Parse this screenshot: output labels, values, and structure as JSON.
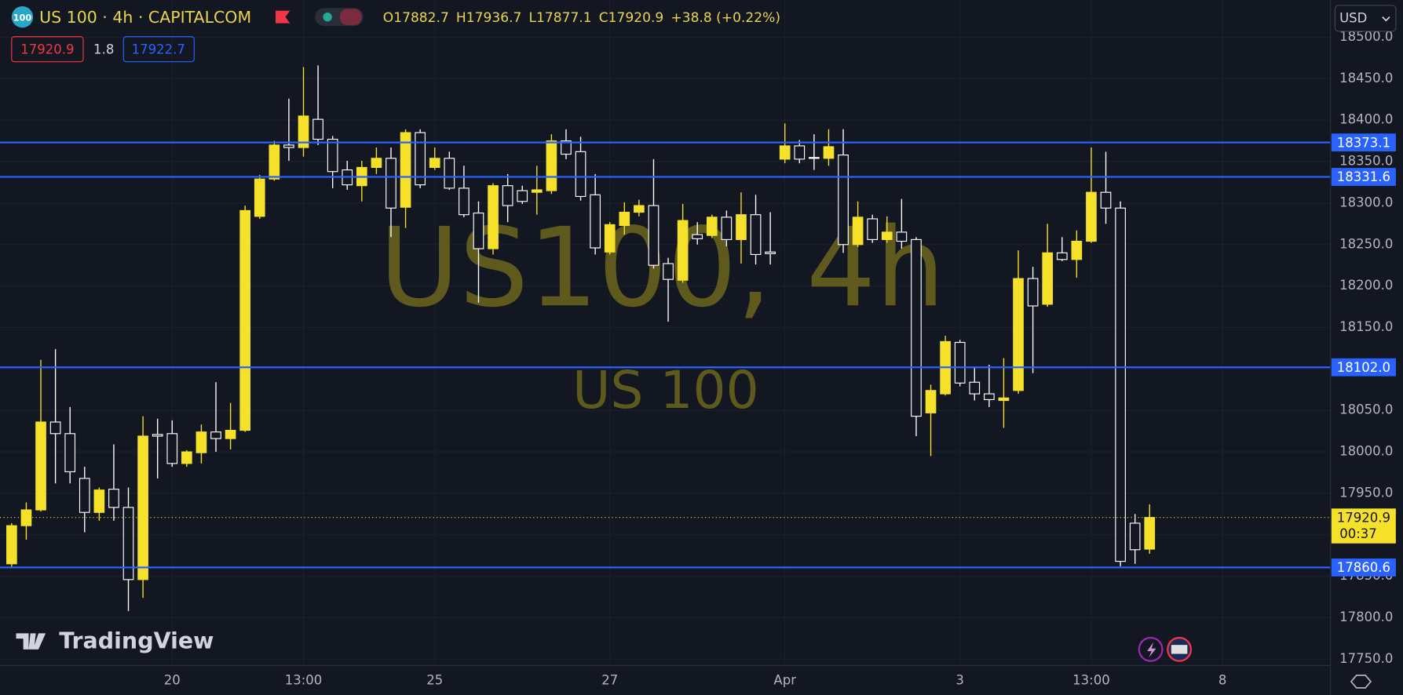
{
  "header": {
    "badge": "100",
    "symbol": "US 100 · 4h · CAPITALCOM",
    "ohlc_letters": [
      "O",
      "H",
      "L",
      "C"
    ],
    "change": "+38.8 (+0.22%)",
    "bid": 17920.9,
    "spread": 1.8,
    "ask": 17922.7,
    "currency": "USD"
  },
  "watermark": {
    "title": "US100, 4h",
    "subtitle": "US 100"
  },
  "logo": "TradingView",
  "chart_data": {
    "type": "candlestick",
    "up_color": "#f5e12a",
    "down_color": "#ffffff",
    "level_color": "#2962ff",
    "grid": true,
    "xlim": [
      -0.8,
      90.4
    ],
    "xticks": [
      {
        "value": 11,
        "label": "20"
      },
      {
        "value": 20,
        "label": "13:00"
      },
      {
        "value": 29,
        "label": "25"
      },
      {
        "value": 41,
        "label": "27"
      },
      {
        "value": 53,
        "label": "Apr"
      },
      {
        "value": 65,
        "label": "3"
      },
      {
        "value": 74,
        "label": "13:00"
      },
      {
        "value": 83,
        "label": "8"
      }
    ],
    "ylim": [
      17742.4,
      18544.9
    ],
    "yticks": [
      {
        "value": 17750,
        "label": "17750.0"
      },
      {
        "value": 17800,
        "label": "17800.0"
      },
      {
        "value": 17850,
        "label": "17850.0"
      },
      {
        "value": 17900,
        "label": "17900.0"
      },
      {
        "value": 17950,
        "label": "17950.0"
      },
      {
        "value": 18000,
        "label": "18000.0"
      },
      {
        "value": 18050,
        "label": "18050.0"
      },
      {
        "value": 18100,
        "label": "18100.0"
      },
      {
        "value": 18150,
        "label": "18150.0"
      },
      {
        "value": 18200,
        "label": "18200.0"
      },
      {
        "value": 18250,
        "label": "18250.0"
      },
      {
        "value": 18300,
        "label": "18300.0"
      },
      {
        "value": 18350,
        "label": "18350.0"
      },
      {
        "value": 18400,
        "label": "18400.0"
      },
      {
        "value": 18450,
        "label": "18450.0"
      },
      {
        "value": 18500,
        "label": "18500.0"
      }
    ],
    "levels": [
      18373.1,
      18331.6,
      {
        "value": 18102,
        "label": "18102.0"
      },
      17860.6
    ],
    "countdown": "00:37",
    "open": [
      17865,
      17911,
      17930,
      18036,
      18022,
      17968,
      17927,
      17955,
      17933,
      17846,
      18021,
      18022,
      17986,
      17999,
      18024,
      18016,
      18026,
      18284,
      18329,
      18370,
      18367,
      18401,
      18377,
      18340,
      18321,
      18343,
      18354,
      18295,
      18385,
      18343,
      18354,
      18318,
      18288,
      18245,
      18321,
      18315,
      18313,
      18315,
      18375,
      18362,
      18310,
      18241,
      18273,
      18289,
      18297,
      18227,
      18207,
      18262,
      18261,
      18283,
      18256,
      18286,
      18241,
      18353,
      18369,
      18355,
      18354,
      18358,
      18250,
      18281,
      18256,
      18265,
      18256,
      18047,
      18070,
      18132,
      18084,
      18070,
      18062,
      18074,
      18209,
      18178,
      18240,
      18232,
      18254,
      18313,
      18294,
      17914,
      17882.7
    ],
    "high": [
      17914,
      17939,
      18111,
      18124,
      18054,
      17982,
      17957,
      18009,
      17957,
      18043,
      18040,
      18038,
      18002,
      18033,
      18084,
      18059,
      18297,
      18334,
      18375,
      18426,
      18464,
      18466,
      18381,
      18351,
      18351,
      18367,
      18367,
      18389,
      18389,
      18367,
      18362,
      18345,
      18302,
      18324,
      18335,
      18321,
      18345,
      18383,
      18389,
      18380,
      18335,
      18277,
      18301,
      18304,
      18353,
      18234,
      18299,
      18277,
      18286,
      18291,
      18313,
      18310,
      18289,
      18396,
      18376,
      18383,
      18389,
      18389,
      18302,
      18286,
      18284,
      18305,
      18259,
      18081,
      18140,
      18135,
      18103,
      18105,
      18113,
      18243,
      18223,
      18275,
      18259,
      18267,
      18367,
      18362,
      18302,
      17925,
      17936.7
    ],
    "low": [
      17860,
      17894,
      17928,
      17962,
      17962,
      17903,
      17917,
      17917,
      17808,
      17824,
      17968,
      17982,
      17982,
      17986,
      18000,
      18003,
      18024,
      18281,
      18327,
      18351,
      18356,
      18370,
      18318,
      18316,
      18302,
      18335,
      18259,
      18270,
      18318,
      18340,
      18316,
      18283,
      18180,
      18238,
      18277,
      18299,
      18286,
      18311,
      18353,
      18303,
      18238,
      18238,
      18262,
      18284,
      18221,
      18157,
      18204,
      18250,
      18258,
      18248,
      18227,
      18226,
      18226,
      18348,
      18348,
      18340,
      18345,
      18240,
      18247,
      18252,
      18252,
      18245,
      18019,
      17995,
      18068,
      18079,
      18062,
      18054,
      18029,
      18070,
      18095,
      18175,
      18230,
      18210,
      18252,
      18275,
      17862,
      17865,
      17877.1
    ],
    "close": [
      17911,
      17930,
      18036,
      18022,
      17976,
      17927,
      17954,
      17933,
      17846,
      18019,
      18019,
      17986,
      18000,
      18024,
      18016,
      18026,
      18291,
      18329,
      18370,
      18367,
      18405,
      18377,
      18338,
      18322,
      18343,
      18354,
      18294,
      18385,
      18322,
      18354,
      18318,
      18286,
      18245,
      18321,
      18297,
      18302,
      18316,
      18375,
      18359,
      18308,
      18246,
      18274,
      18289,
      18297,
      18225,
      18208,
      18279,
      18257,
      18283,
      18256,
      18286,
      18238,
      18239,
      18369,
      18353,
      18354,
      18368,
      18250,
      18283,
      18256,
      18265,
      18254,
      18043,
      18074,
      18133,
      18083,
      18070,
      18063,
      18065,
      18209,
      18176,
      18240,
      18232,
      18254,
      18313,
      18294,
      17868,
      17882,
      17920.9
    ]
  }
}
